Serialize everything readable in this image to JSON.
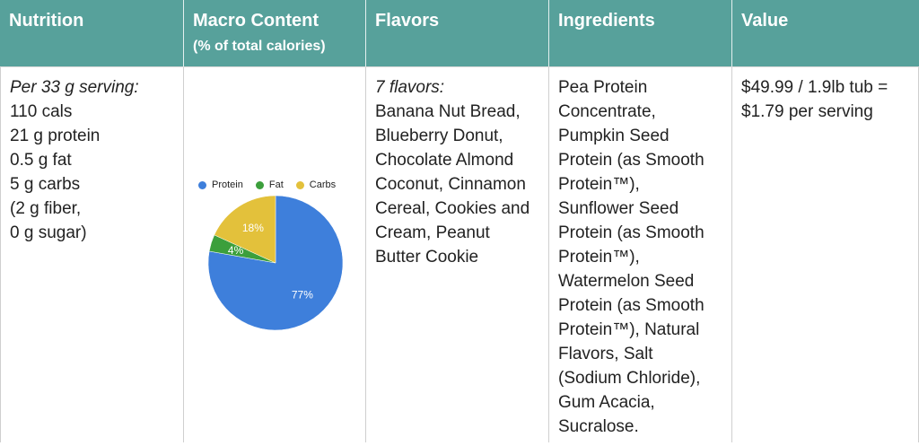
{
  "header": {
    "nutrition": "Nutrition",
    "macro_title": "Macro Content",
    "macro_sub": "(% of total calories)",
    "flavors": "Flavors",
    "ingredients": "Ingredients",
    "value": "Value"
  },
  "nutrition": {
    "serving": "Per 33 g serving:",
    "lines": [
      "110 cals",
      "21 g protein",
      "0.5 g fat",
      "5 g carbs",
      "(2 g fiber,",
      "0 g sugar)"
    ]
  },
  "flavors": {
    "count": "7 flavors:",
    "lines": [
      "Banana Nut Bread,",
      "Blueberry Donut,",
      "Chocolate Almond",
      "Coconut, Cinnamon",
      "Cereal, Cookies and",
      "Cream, Peanut",
      "Butter Cookie"
    ]
  },
  "ingredients": {
    "lines": [
      "Pea Protein",
      "Concentrate,",
      "Pumpkin Seed",
      "Protein (as Smooth",
      "Protein™),",
      "Sunflower Seed",
      "Protein (as Smooth",
      "Protein™),",
      "Watermelon Seed",
      "Protein (as Smooth",
      "Protein™), Natural",
      "Flavors, Salt",
      "(Sodium Chloride),",
      "Gum Acacia,",
      "Sucralose."
    ]
  },
  "value": {
    "lines": [
      "$49.99 / 1.9lb tub =",
      "$1.79 per serving"
    ]
  },
  "chart_data": {
    "type": "pie",
    "categories": [
      "Protein",
      "Fat",
      "Carbs"
    ],
    "values": [
      77,
      4,
      18
    ],
    "labels": [
      "77%",
      "4%",
      "18%"
    ],
    "colors": [
      "#3e7fdb",
      "#3c9f3c",
      "#e3c13b"
    ],
    "legend": "top"
  }
}
